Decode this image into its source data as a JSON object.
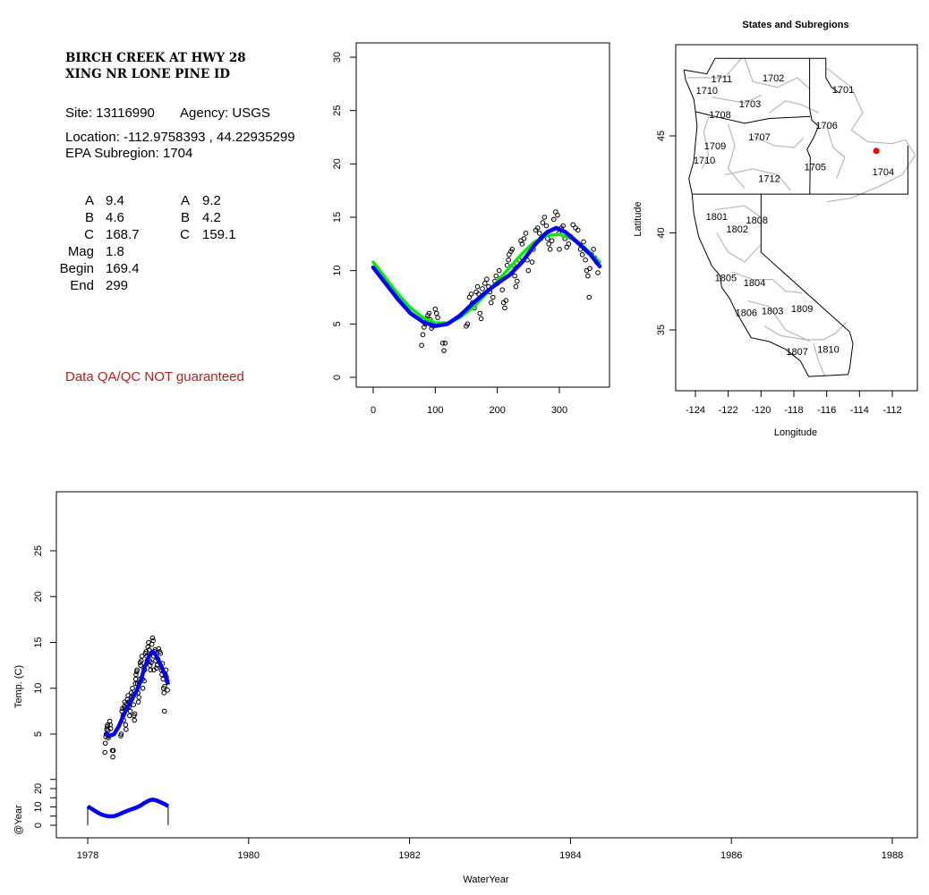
{
  "site_panel": {
    "title_line1": "BIRCH CREEK AT HWY 28",
    "title_line2": "XING NR LONE PINE ID",
    "site": "Site: 13116990",
    "agency": "Agency: USGS",
    "location": "Location: -112.9758393 , 44.22935299",
    "epa_subregion": "EPA Subregion: 1704",
    "params_left": [
      {
        "label": "A",
        "value": "9.4"
      },
      {
        "label": "B",
        "value": "4.6"
      },
      {
        "label": "C",
        "value": "168.7"
      },
      {
        "label": "Mag",
        "value": "1.8"
      },
      {
        "label": "Begin",
        "value": "169.4"
      },
      {
        "label": "End",
        "value": "299"
      }
    ],
    "params_right": [
      {
        "label": "A",
        "value": "9.2"
      },
      {
        "label": "B",
        "value": "4.2"
      },
      {
        "label": "C",
        "value": "159.1"
      }
    ],
    "warning": "Data QA/QC NOT guaranteed",
    "warning_color": "#b22222"
  },
  "chart_data": [
    {
      "id": "doy",
      "type": "scatter",
      "title": "",
      "xlabel": "",
      "ylabel": "",
      "xlim": [
        -5,
        375
      ],
      "ylim": [
        -1,
        31
      ],
      "xticks": [
        0,
        100,
        200,
        300
      ],
      "yticks": [
        0,
        5,
        10,
        15,
        20,
        25,
        30
      ],
      "points": [
        [
          78,
          3.0
        ],
        [
          80,
          4.0
        ],
        [
          82,
          4.7
        ],
        [
          84,
          5.0
        ],
        [
          86,
          5.5
        ],
        [
          88,
          5.8
        ],
        [
          90,
          6.0
        ],
        [
          92,
          5.4
        ],
        [
          94,
          4.6
        ],
        [
          96,
          4.8
        ],
        [
          100,
          6.4
        ],
        [
          102,
          6.0
        ],
        [
          104,
          5.6
        ],
        [
          112,
          3.2
        ],
        [
          114,
          2.5
        ],
        [
          116,
          3.2
        ],
        [
          150,
          4.8
        ],
        [
          152,
          5.0
        ],
        [
          155,
          7.5
        ],
        [
          158,
          7.8
        ],
        [
          160,
          7.0
        ],
        [
          163,
          6.5
        ],
        [
          166,
          8.0
        ],
        [
          168,
          8.5
        ],
        [
          170,
          7.8
        ],
        [
          172,
          6.0
        ],
        [
          174,
          5.5
        ],
        [
          176,
          8.3
        ],
        [
          180,
          8.8
        ],
        [
          183,
          9.2
        ],
        [
          186,
          8.5
        ],
        [
          188,
          8.0
        ],
        [
          190,
          7.0
        ],
        [
          193,
          7.5
        ],
        [
          196,
          9.0
        ],
        [
          198,
          9.5
        ],
        [
          200,
          8.8
        ],
        [
          203,
          10.0
        ],
        [
          206,
          9.3
        ],
        [
          208,
          8.2
        ],
        [
          210,
          7.0
        ],
        [
          212,
          6.5
        ],
        [
          214,
          7.2
        ],
        [
          216,
          10.5
        ],
        [
          218,
          11.0
        ],
        [
          219,
          11.5
        ],
        [
          222,
          11.8
        ],
        [
          224,
          12.0
        ],
        [
          226,
          10.5
        ],
        [
          228,
          9.5
        ],
        [
          230,
          8.5
        ],
        [
          232,
          9.0
        ],
        [
          235,
          11.0
        ],
        [
          238,
          12.8
        ],
        [
          240,
          12.5
        ],
        [
          243,
          13.0
        ],
        [
          246,
          13.5
        ],
        [
          248,
          11.0
        ],
        [
          250,
          10.0
        ],
        [
          253,
          12.2
        ],
        [
          256,
          10.8
        ],
        [
          258,
          12.0
        ],
        [
          262,
          13.8
        ],
        [
          265,
          14.0
        ],
        [
          268,
          13.5
        ],
        [
          270,
          13.0
        ],
        [
          273,
          14.5
        ],
        [
          276,
          15.0
        ],
        [
          279,
          14.2
        ],
        [
          281,
          13.0
        ],
        [
          283,
          12.5
        ],
        [
          285,
          12.0
        ],
        [
          288,
          12.8
        ],
        [
          291,
          14.8
        ],
        [
          294,
          15.5
        ],
        [
          297,
          15.2
        ],
        [
          299,
          13.5
        ],
        [
          300,
          12.0
        ],
        [
          303,
          14.0
        ],
        [
          306,
          14.2
        ],
        [
          309,
          13.0
        ],
        [
          312,
          12.2
        ],
        [
          315,
          12.5
        ],
        [
          318,
          13.2
        ],
        [
          322,
          14.3
        ],
        [
          326,
          14.0
        ],
        [
          330,
          13.8
        ],
        [
          334,
          12.0
        ],
        [
          337,
          11.5
        ],
        [
          339,
          12.7
        ],
        [
          342,
          11.0
        ],
        [
          344,
          10.0
        ],
        [
          346,
          9.5
        ],
        [
          349,
          10.2
        ],
        [
          352,
          11.5
        ],
        [
          355,
          12.0
        ],
        [
          357,
          11.2
        ],
        [
          360,
          10.8
        ],
        [
          348,
          7.5
        ],
        [
          362,
          9.8
        ]
      ],
      "series": [
        {
          "name": "fit-green",
          "color": "#00ee00",
          "values": [
            [
              0,
              10.8
            ],
            [
              20,
              9.3
            ],
            [
              40,
              7.8
            ],
            [
              60,
              6.5
            ],
            [
              80,
              5.6
            ],
            [
              100,
              5.1
            ],
            [
              120,
              5.1
            ],
            [
              140,
              5.6
            ],
            [
              160,
              6.5
            ],
            [
              180,
              7.7
            ],
            [
              200,
              9.0
            ],
            [
              220,
              10.3
            ],
            [
              240,
              11.6
            ],
            [
              260,
              12.7
            ],
            [
              280,
              13.3
            ],
            [
              300,
              13.4
            ],
            [
              320,
              13.0
            ],
            [
              340,
              12.2
            ],
            [
              365,
              10.8
            ]
          ]
        },
        {
          "name": "fit-blue",
          "color": "#0000ff",
          "values": [
            [
              0,
              10.3
            ],
            [
              20,
              8.8
            ],
            [
              40,
              7.3
            ],
            [
              60,
              6.0
            ],
            [
              80,
              5.2
            ],
            [
              100,
              4.8
            ],
            [
              120,
              5.0
            ],
            [
              140,
              5.8
            ],
            [
              160,
              6.9
            ],
            [
              180,
              7.9
            ],
            [
              200,
              8.8
            ],
            [
              220,
              9.6
            ],
            [
              240,
              10.8
            ],
            [
              260,
              12.4
            ],
            [
              280,
              13.6
            ],
            [
              295,
              14.0
            ],
            [
              310,
              13.6
            ],
            [
              330,
              12.6
            ],
            [
              350,
              11.5
            ],
            [
              365,
              10.4
            ]
          ]
        }
      ]
    },
    {
      "id": "map",
      "type": "scatter",
      "title": "States and Subregions",
      "xlabel": "Longitude",
      "ylabel": "Latitude",
      "xlim": [
        -125.2,
        -110.5
      ],
      "ylim": [
        31.9,
        49.7
      ],
      "xticks": [
        -124,
        -122,
        -120,
        -118,
        -116,
        -114,
        -112
      ],
      "yticks": [
        35,
        40,
        45
      ],
      "site_point": [
        -112.9758393,
        44.22935299
      ],
      "site_color": "#ff0000",
      "region_labels": [
        {
          "label": "1702",
          "lon": -119.25,
          "lat": 48.0
        },
        {
          "label": "1711",
          "lon": -122.4,
          "lat": 47.95
        },
        {
          "label": "1701",
          "lon": -115.0,
          "lat": 47.4
        },
        {
          "label": "1710",
          "lon": -123.3,
          "lat": 47.35
        },
        {
          "label": "1703",
          "lon": -120.67,
          "lat": 46.66
        },
        {
          "label": "1708",
          "lon": -122.5,
          "lat": 46.1
        },
        {
          "label": "1706",
          "lon": -116.0,
          "lat": 45.55
        },
        {
          "label": "1707",
          "lon": -120.1,
          "lat": 44.95
        },
        {
          "label": "1709",
          "lon": -122.8,
          "lat": 44.5
        },
        {
          "label": "1710",
          "lon": -123.45,
          "lat": 43.75
        },
        {
          "label": "1705",
          "lon": -116.7,
          "lat": 43.4
        },
        {
          "label": "1704",
          "lon": -112.55,
          "lat": 43.15
        },
        {
          "label": "1712",
          "lon": -119.5,
          "lat": 42.8
        },
        {
          "label": "1801",
          "lon": -122.7,
          "lat": 40.85
        },
        {
          "label": "1808",
          "lon": -120.25,
          "lat": 40.67
        },
        {
          "label": "1802",
          "lon": -121.45,
          "lat": 40.2
        },
        {
          "label": "1805",
          "lon": -122.15,
          "lat": 37.7
        },
        {
          "label": "1804",
          "lon": -120.4,
          "lat": 37.45
        },
        {
          "label": "1806",
          "lon": -120.9,
          "lat": 35.9
        },
        {
          "label": "1803",
          "lon": -119.3,
          "lat": 36.0
        },
        {
          "label": "1809",
          "lon": -117.5,
          "lat": 36.1
        },
        {
          "label": "1807",
          "lon": -117.8,
          "lat": 33.9
        },
        {
          "label": "1810",
          "lon": -115.9,
          "lat": 34.0
        }
      ]
    },
    {
      "id": "timeseries",
      "type": "scatter",
      "title": "",
      "xlabel": "WaterYear",
      "ylabel": "Temp. (C)",
      "ylabel_lower": "@Year",
      "xlim": [
        1977.6,
        1988.3
      ],
      "xticks": [
        1978,
        1980,
        1982,
        1984,
        1986,
        1988
      ],
      "yticks": [
        5,
        10,
        15,
        20,
        25
      ],
      "yticks_lower": [
        0,
        5,
        10,
        15,
        20,
        25
      ],
      "yticklabels_lower": [
        0,
        10,
        20
      ],
      "start_year": 1978,
      "note": "same daily points and blue fit as doy chart, plotted at year = start_year + day/365"
    }
  ]
}
